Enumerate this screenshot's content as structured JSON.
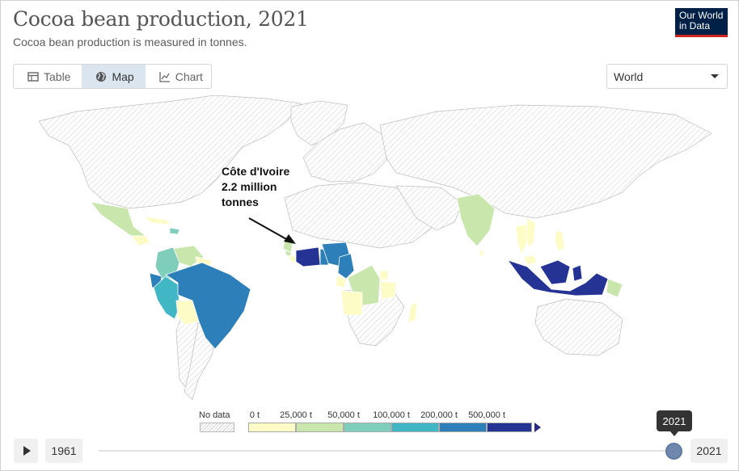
{
  "title": "Cocoa bean production, 2021",
  "subtitle": "Cocoa bean production is measured in tonnes.",
  "logo": {
    "line1": "Our World",
    "line2": "in Data"
  },
  "tabs": [
    {
      "label": "Table",
      "icon": "table-icon",
      "active": false
    },
    {
      "label": "Map",
      "icon": "globe-icon",
      "active": true
    },
    {
      "label": "Chart",
      "icon": "line-chart-icon",
      "active": false
    }
  ],
  "region_select": {
    "value": "World"
  },
  "annotation": {
    "line1": "Côte d'Ivoire",
    "line2": "2.2 million",
    "line3": "tonnes"
  },
  "legend": {
    "no_data_label": "No data",
    "ticks": [
      "0 t",
      "25,000 t",
      "50,000 t",
      "100,000 t",
      "200,000 t",
      "500,000 t"
    ],
    "colors": [
      "#fdfbc6",
      "#c9e7ad",
      "#7fcdbb",
      "#41b6c4",
      "#2c7fb8",
      "#253494"
    ],
    "no_data_color": "#d9d9d9"
  },
  "timeline": {
    "start_year": "1961",
    "end_year": "2021",
    "selected_year": "2021",
    "position": 1.0
  },
  "chart_data": {
    "type": "choropleth",
    "title": "Cocoa bean production, 2021",
    "unit": "tonnes",
    "bins": [
      0,
      25000,
      50000,
      100000,
      200000,
      500000
    ],
    "countries": [
      {
        "name": "Côte d'Ivoire",
        "bin": 5,
        "value": 2200000
      },
      {
        "name": "Ghana",
        "bin": 4
      },
      {
        "name": "Nigeria",
        "bin": 4
      },
      {
        "name": "Cameroon",
        "bin": 4
      },
      {
        "name": "Indonesia",
        "bin": 5
      },
      {
        "name": "Brazil",
        "bin": 4
      },
      {
        "name": "Ecuador",
        "bin": 4
      },
      {
        "name": "Peru",
        "bin": 3
      },
      {
        "name": "Colombia",
        "bin": 2
      },
      {
        "name": "Dominican Republic",
        "bin": 2
      },
      {
        "name": "Papua New Guinea",
        "bin": 1
      },
      {
        "name": "Mexico",
        "bin": 1
      },
      {
        "name": "India",
        "bin": 1
      },
      {
        "name": "Venezuela",
        "bin": 1
      },
      {
        "name": "Bolivia",
        "bin": 0
      },
      {
        "name": "Democratic Republic of Congo",
        "bin": 1
      },
      {
        "name": "Sierra Leone",
        "bin": 1
      },
      {
        "name": "Guinea",
        "bin": 1
      },
      {
        "name": "Togo",
        "bin": 0
      },
      {
        "name": "Liberia",
        "bin": 0
      },
      {
        "name": "Uganda",
        "bin": 0
      },
      {
        "name": "Tanzania",
        "bin": 0
      },
      {
        "name": "Madagascar",
        "bin": 0
      },
      {
        "name": "Angola",
        "bin": 0
      },
      {
        "name": "Vietnam",
        "bin": 0
      },
      {
        "name": "Thailand",
        "bin": 0
      },
      {
        "name": "Philippines",
        "bin": 0
      },
      {
        "name": "Malaysia",
        "bin": 0
      },
      {
        "name": "Guatemala",
        "bin": 0
      },
      {
        "name": "Honduras",
        "bin": 0
      },
      {
        "name": "Nicaragua",
        "bin": 0
      }
    ]
  }
}
